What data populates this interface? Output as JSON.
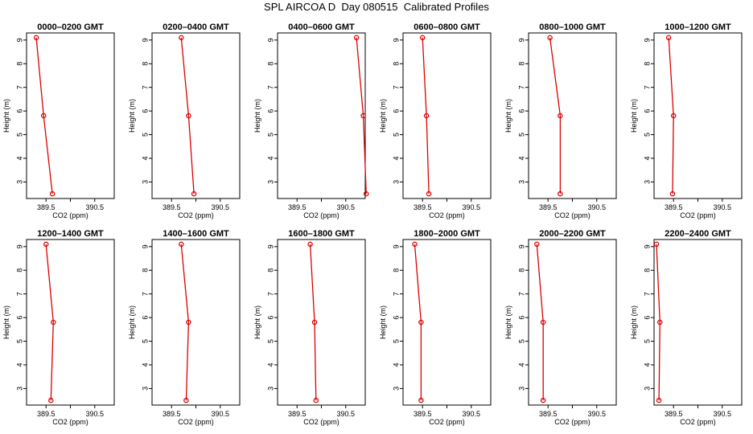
{
  "figure": {
    "title": "SPL AIRCOA D  Day 080515  Calibrated Profiles",
    "series_color": "#dd0000"
  },
  "chart_data": [
    {
      "type": "line",
      "title": "0000–0200 GMT",
      "xlabel": "CO2 (ppm)",
      "ylabel": "Height (m)",
      "xlim": [
        389.1,
        390.9
      ],
      "ylim": [
        2.3,
        9.3
      ],
      "x_ticks": [
        389.5,
        390.5
      ],
      "y_ticks": [
        3,
        4,
        5,
        6,
        7,
        8,
        9
      ],
      "series": [
        {
          "x": [
            389.3,
            389.45,
            389.63
          ],
          "y": [
            9.1,
            5.8,
            2.5
          ]
        }
      ]
    },
    {
      "type": "line",
      "title": "0200–0400 GMT",
      "xlabel": "CO2 (ppm)",
      "ylabel": "Height (m)",
      "xlim": [
        389.1,
        390.9
      ],
      "ylim": [
        2.3,
        9.3
      ],
      "x_ticks": [
        389.5,
        390.5
      ],
      "y_ticks": [
        3,
        4,
        5,
        6,
        7,
        8,
        9
      ],
      "series": [
        {
          "x": [
            389.7,
            389.85,
            389.96
          ],
          "y": [
            9.1,
            5.8,
            2.5
          ]
        }
      ]
    },
    {
      "type": "line",
      "title": "0400–0600 GMT",
      "xlabel": "CO2 (ppm)",
      "ylabel": "Height (m)",
      "xlim": [
        389.1,
        390.9
      ],
      "ylim": [
        2.3,
        9.3
      ],
      "x_ticks": [
        389.5,
        390.5
      ],
      "y_ticks": [
        3,
        4,
        5,
        6,
        7,
        8,
        9
      ],
      "series": [
        {
          "x": [
            390.72,
            390.86,
            390.92
          ],
          "y": [
            9.1,
            5.8,
            2.5
          ]
        }
      ]
    },
    {
      "type": "line",
      "title": "0600–0800 GMT",
      "xlabel": "CO2 (ppm)",
      "ylabel": "Height (m)",
      "xlim": [
        389.1,
        390.9
      ],
      "ylim": [
        2.3,
        9.3
      ],
      "x_ticks": [
        389.5,
        390.5
      ],
      "y_ticks": [
        3,
        4,
        5,
        6,
        7,
        8,
        9
      ],
      "series": [
        {
          "x": [
            389.5,
            389.58,
            389.63
          ],
          "y": [
            9.1,
            5.8,
            2.5
          ]
        }
      ]
    },
    {
      "type": "line",
      "title": "0800–1000 GMT",
      "xlabel": "CO2 (ppm)",
      "ylabel": "Height (m)",
      "xlim": [
        389.1,
        390.9
      ],
      "ylim": [
        2.3,
        9.3
      ],
      "x_ticks": [
        389.5,
        390.5
      ],
      "y_ticks": [
        3,
        4,
        5,
        6,
        7,
        8,
        9
      ],
      "series": [
        {
          "x": [
            389.54,
            389.75,
            389.75
          ],
          "y": [
            9.1,
            5.8,
            2.5
          ]
        }
      ]
    },
    {
      "type": "line",
      "title": "1000–1200 GMT",
      "xlabel": "CO2 (ppm)",
      "ylabel": "Height (m)",
      "xlim": [
        389.1,
        390.9
      ],
      "ylim": [
        2.3,
        9.3
      ],
      "x_ticks": [
        389.5,
        390.5
      ],
      "y_ticks": [
        3,
        4,
        5,
        6,
        7,
        8,
        9
      ],
      "series": [
        {
          "x": [
            389.4,
            389.5,
            389.48
          ],
          "y": [
            9.1,
            5.8,
            2.5
          ]
        }
      ]
    },
    {
      "type": "line",
      "title": "1200–1400 GMT",
      "xlabel": "CO2 (ppm)",
      "ylabel": "Height (m)",
      "xlim": [
        389.1,
        390.9
      ],
      "ylim": [
        2.3,
        9.3
      ],
      "x_ticks": [
        389.5,
        390.5
      ],
      "y_ticks": [
        3,
        4,
        5,
        6,
        7,
        8,
        9
      ],
      "series": [
        {
          "x": [
            389.5,
            389.65,
            389.6
          ],
          "y": [
            9.1,
            5.8,
            2.5
          ]
        }
      ]
    },
    {
      "type": "line",
      "title": "1400–1600 GMT",
      "xlabel": "CO2 (ppm)",
      "ylabel": "Height (m)",
      "xlim": [
        389.1,
        390.9
      ],
      "ylim": [
        2.3,
        9.3
      ],
      "x_ticks": [
        389.5,
        390.5
      ],
      "y_ticks": [
        3,
        4,
        5,
        6,
        7,
        8,
        9
      ],
      "series": [
        {
          "x": [
            389.7,
            389.85,
            389.8
          ],
          "y": [
            9.1,
            5.8,
            2.5
          ]
        }
      ]
    },
    {
      "type": "line",
      "title": "1600–1800 GMT",
      "xlabel": "CO2 (ppm)",
      "ylabel": "Height (m)",
      "xlim": [
        389.1,
        390.9
      ],
      "ylim": [
        2.3,
        9.3
      ],
      "x_ticks": [
        389.5,
        390.5
      ],
      "y_ticks": [
        3,
        4,
        5,
        6,
        7,
        8,
        9
      ],
      "series": [
        {
          "x": [
            389.77,
            389.86,
            389.89
          ],
          "y": [
            9.1,
            5.8,
            2.5
          ]
        }
      ]
    },
    {
      "type": "line",
      "title": "1800–2000 GMT",
      "xlabel": "CO2 (ppm)",
      "ylabel": "Height (m)",
      "xlim": [
        389.1,
        390.9
      ],
      "ylim": [
        2.3,
        9.3
      ],
      "x_ticks": [
        389.5,
        390.5
      ],
      "y_ticks": [
        3,
        4,
        5,
        6,
        7,
        8,
        9
      ],
      "series": [
        {
          "x": [
            389.34,
            389.47,
            389.47
          ],
          "y": [
            9.1,
            5.8,
            2.5
          ]
        }
      ]
    },
    {
      "type": "line",
      "title": "2000–2200 GMT",
      "xlabel": "CO2 (ppm)",
      "ylabel": "Height (m)",
      "xlim": [
        389.1,
        390.9
      ],
      "ylim": [
        2.3,
        9.3
      ],
      "x_ticks": [
        389.5,
        390.5
      ],
      "y_ticks": [
        3,
        4,
        5,
        6,
        7,
        8,
        9
      ],
      "series": [
        {
          "x": [
            389.27,
            389.4,
            389.4
          ],
          "y": [
            9.1,
            5.8,
            2.5
          ]
        }
      ]
    },
    {
      "type": "line",
      "title": "2200–2400 GMT",
      "xlabel": "CO2 (ppm)",
      "ylabel": "Height (m)",
      "xlim": [
        389.1,
        390.9
      ],
      "ylim": [
        2.3,
        9.3
      ],
      "x_ticks": [
        389.5,
        390.5
      ],
      "y_ticks": [
        3,
        4,
        5,
        6,
        7,
        8,
        9
      ],
      "series": [
        {
          "x": [
            389.15,
            389.22,
            389.2
          ],
          "y": [
            9.1,
            5.8,
            2.5
          ]
        }
      ]
    }
  ]
}
